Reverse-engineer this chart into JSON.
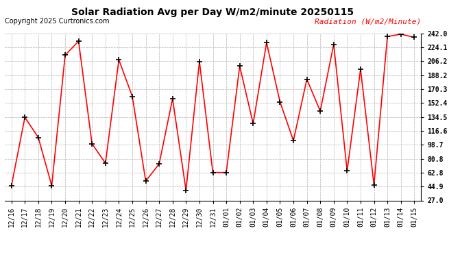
{
  "title": "Solar Radiation Avg per Day W/m2/minute 20250115",
  "copyright": "Copyright 2025 Curtronics.com",
  "legend_label": "Radiation (W/m2/Minute)",
  "dates": [
    "12/16",
    "12/17",
    "12/18",
    "12/19",
    "12/20",
    "12/21",
    "12/22",
    "12/23",
    "12/24",
    "12/25",
    "12/26",
    "12/27",
    "12/28",
    "12/29",
    "12/30",
    "12/31",
    "01/01",
    "01/02",
    "01/03",
    "01/04",
    "01/05",
    "01/06",
    "01/07",
    "01/08",
    "01/09",
    "01/10",
    "01/11",
    "01/12",
    "01/13",
    "01/14",
    "01/15"
  ],
  "values": [
    46,
    134,
    108,
    46,
    214,
    232,
    100,
    75,
    208,
    161,
    52,
    74,
    158,
    40,
    206,
    63,
    63,
    200,
    126,
    230,
    154,
    104,
    183,
    142,
    228,
    65,
    196,
    47,
    238,
    241,
    237
  ],
  "line_color": "red",
  "marker": "+",
  "marker_color": "black",
  "bg_color": "#ffffff",
  "grid_color": "#b0b0b0",
  "ylim": [
    27.0,
    242.0
  ],
  "yticks": [
    27.0,
    44.9,
    62.8,
    80.8,
    98.7,
    116.6,
    134.5,
    152.4,
    170.3,
    188.2,
    206.2,
    224.1,
    242.0
  ],
  "title_fontsize": 10,
  "copyright_fontsize": 7,
  "legend_fontsize": 8,
  "tick_fontsize": 7
}
